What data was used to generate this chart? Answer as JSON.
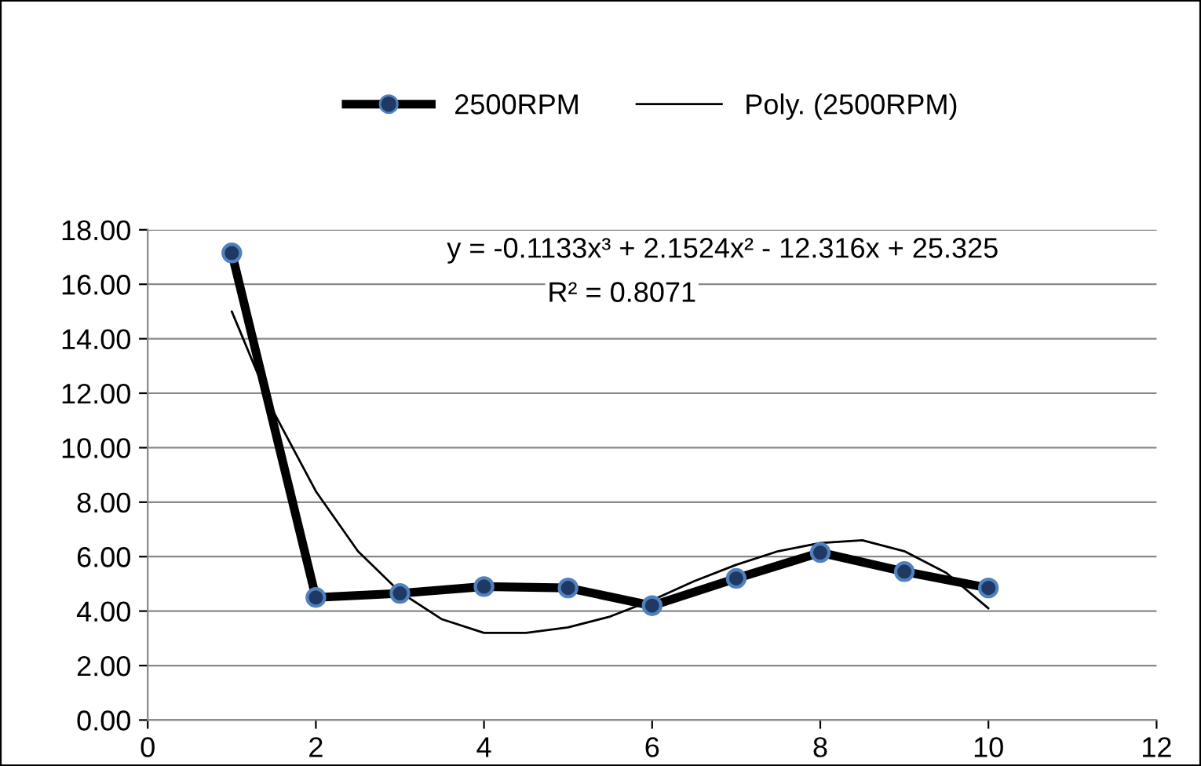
{
  "chart_data": {
    "type": "line",
    "x": [
      1,
      2,
      3,
      4,
      5,
      6,
      7,
      8,
      9,
      10
    ],
    "series": [
      {
        "name": "2500RPM",
        "color": "#000000",
        "values": [
          17.15,
          4.5,
          4.65,
          4.9,
          4.85,
          4.2,
          5.2,
          6.15,
          5.45,
          4.85
        ],
        "marker": "circle"
      },
      {
        "name": "Poly. (2500RPM)",
        "color": "#000000",
        "marker": "none",
        "x": [
          1,
          1.5,
          2,
          2.5,
          3,
          3.5,
          4,
          4.5,
          5,
          5.5,
          6,
          6.5,
          7,
          7.5,
          8,
          8.5,
          9,
          9.5,
          10
        ],
        "values": [
          15.0,
          11.3,
          8.4,
          6.2,
          4.7,
          3.7,
          3.2,
          3.2,
          3.4,
          3.8,
          4.4,
          5.1,
          5.7,
          6.2,
          6.5,
          6.6,
          6.2,
          5.4,
          4.1
        ]
      }
    ],
    "xlim": [
      0,
      12
    ],
    "xticks": [
      0,
      2,
      4,
      6,
      8,
      10,
      12
    ],
    "ylim": [
      0,
      18
    ],
    "yticks": [
      {
        "value": 0,
        "label": "0.00"
      },
      {
        "value": 2,
        "label": "2.00"
      },
      {
        "value": 4,
        "label": "4.00"
      },
      {
        "value": 6,
        "label": "6.00"
      },
      {
        "value": 8,
        "label": "8.00"
      },
      {
        "value": 10,
        "label": "10.00"
      },
      {
        "value": 12,
        "label": "12.00"
      },
      {
        "value": 14,
        "label": "14.00"
      },
      {
        "value": 16,
        "label": "16.00"
      },
      {
        "value": 18,
        "label": "18.00"
      }
    ],
    "grid": "y",
    "legend": "top",
    "annotations": [
      "y = -0.1133x³ + 2.1524x² - 12.316x + 25.325",
      "R² = 0.8071"
    ]
  }
}
